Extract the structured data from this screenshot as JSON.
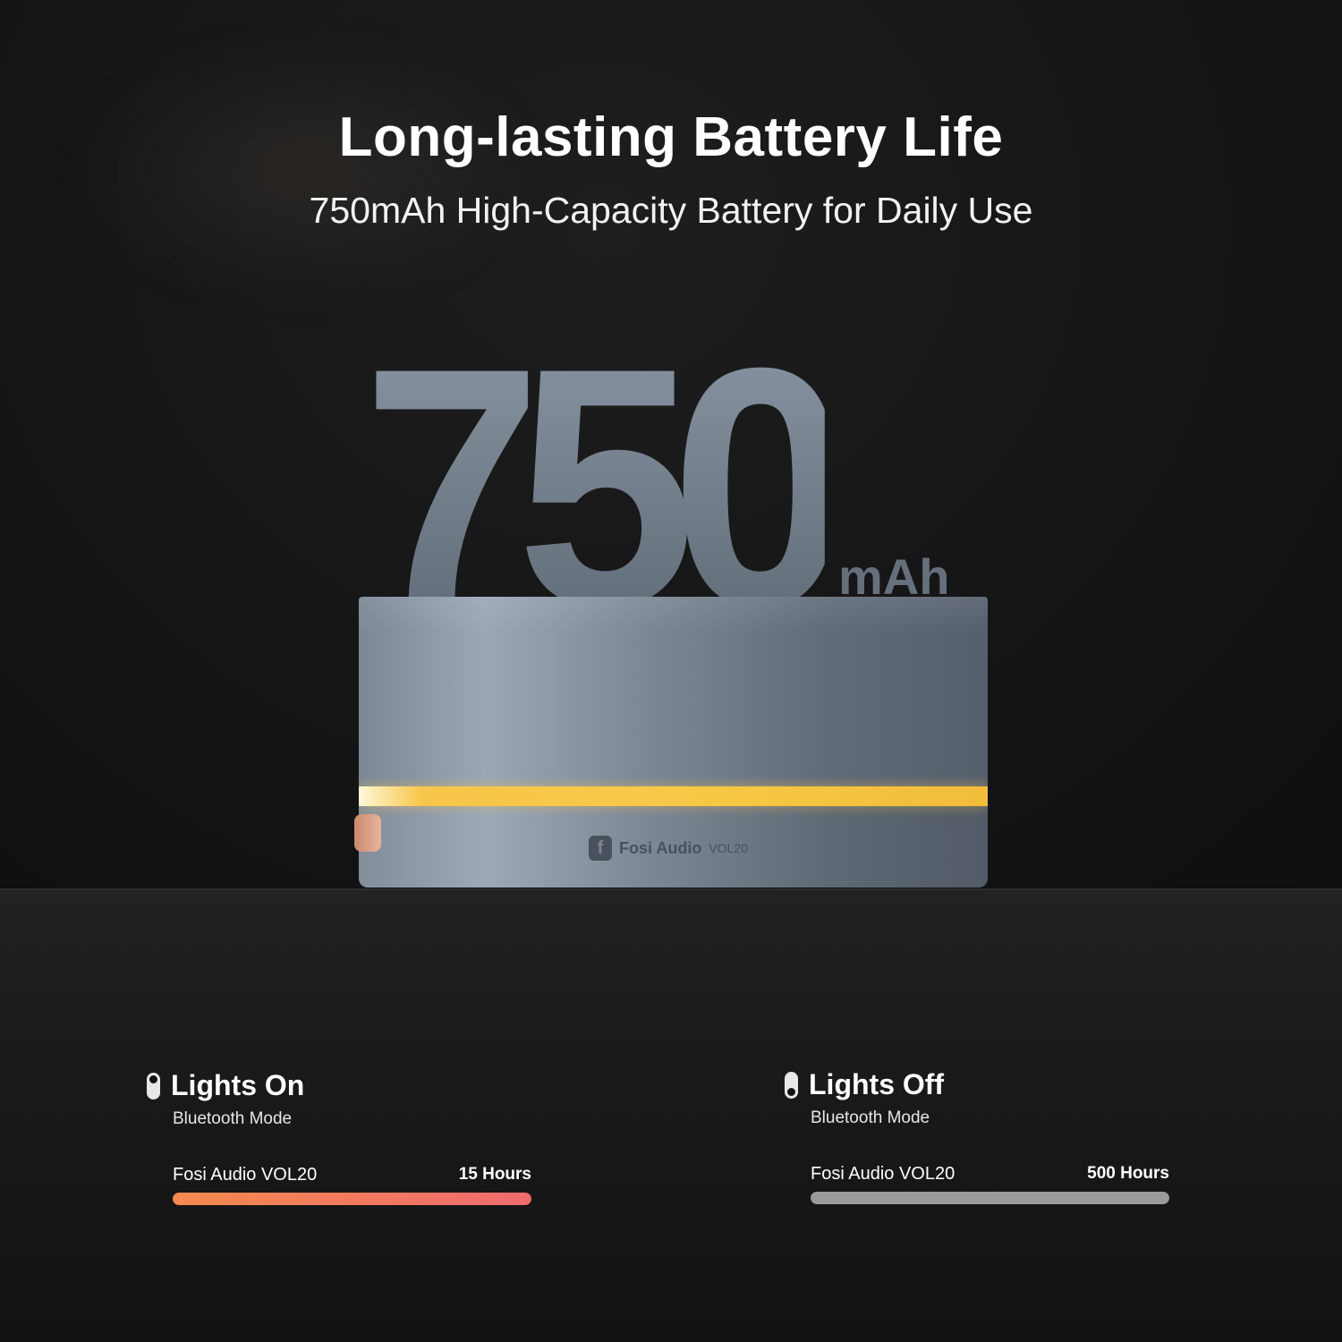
{
  "header": {
    "title": "Long-lasting Battery Life",
    "subtitle": "750mAh High-Capacity Battery for Daily Use"
  },
  "hero": {
    "capacity": "750",
    "unit": "mAh",
    "device_brand": "Fosi Audio",
    "device_model": "VOL20",
    "logo_glyph": "f",
    "light_color": "#f8c948"
  },
  "modes": [
    {
      "title": "Lights On",
      "subtitle": "Bluetooth Mode",
      "toggle_icon": "toggle-on-icon",
      "product": "Fosi Audio VOL20",
      "duration": "15 Hours",
      "bar_fill_percent": 100,
      "bar_colors": [
        "#f58a4e",
        "#f06b6e"
      ]
    },
    {
      "title": "Lights Off",
      "subtitle": "Bluetooth Mode",
      "toggle_icon": "toggle-off-icon",
      "product": "Fosi Audio VOL20",
      "duration": "500 Hours",
      "bar_fill_percent": 100,
      "bar_colors": [
        "#9a9a9a",
        "#9a9a9a"
      ]
    }
  ]
}
